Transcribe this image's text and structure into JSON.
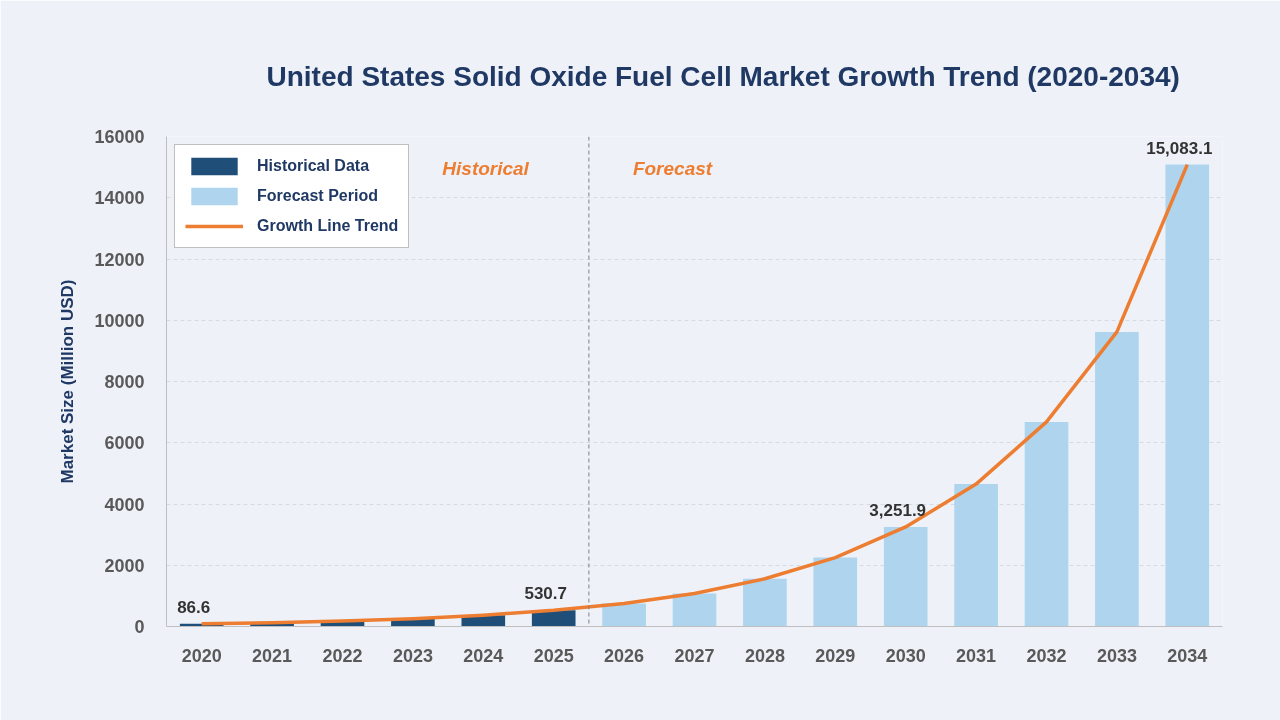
{
  "chart_data": {
    "type": "bar",
    "title": "United States Solid Oxide Fuel Cell Market Growth Trend (2020-2034)",
    "ylabel": "Market Size (Million USD)",
    "x": [
      2020,
      2021,
      2022,
      2023,
      2024,
      2025,
      2026,
      2027,
      2028,
      2029,
      2030,
      2031,
      2032,
      2033,
      2034
    ],
    "xlim": [
      2019.5,
      2034.5
    ],
    "xticks": [
      2020,
      2021,
      2022,
      2023,
      2024,
      2025,
      2026,
      2027,
      2028,
      2029,
      2030,
      2031,
      2032,
      2033,
      2034
    ],
    "ylim": [
      0,
      16000
    ],
    "yticks": [
      0,
      2000,
      4000,
      6000,
      8000,
      10000,
      12000,
      14000,
      16000
    ],
    "series": [
      {
        "name": "Historical Data",
        "color": "#1f4e79",
        "values": [
          86.6,
          120,
          180,
          250,
          370,
          530.7,
          null,
          null,
          null,
          null,
          null,
          null,
          null,
          null,
          null
        ],
        "value_labels": [
          "86.6",
          null,
          null,
          null,
          null,
          "530.7",
          null,
          null,
          null,
          null,
          null,
          null,
          null,
          null,
          null
        ]
      },
      {
        "name": "Forecast Period",
        "color": "#aed4ee",
        "values": [
          null,
          null,
          null,
          null,
          null,
          null,
          750,
          1080,
          1560,
          2250,
          3251.9,
          4650,
          6680,
          9620,
          15083.1
        ],
        "value_labels": [
          null,
          null,
          null,
          null,
          null,
          null,
          null,
          null,
          null,
          null,
          "3,251.9",
          null,
          null,
          null,
          "15,083.1"
        ]
      },
      {
        "name": "Growth Line Trend",
        "type": "line",
        "color": "#ed7d31",
        "line_style": "solid",
        "values": [
          90,
          120,
          180,
          250,
          370,
          530,
          750,
          1080,
          1560,
          2250,
          3250,
          4650,
          6680,
          9620,
          15080
        ]
      }
    ],
    "ref_lines": [
      {
        "axis": "x",
        "value": 2025.5,
        "color": "#7f7f7f",
        "line_style": "dashed"
      }
    ],
    "annotations": [
      "Historical",
      "Forecast"
    ],
    "grid": "y",
    "legend": "top left"
  }
}
